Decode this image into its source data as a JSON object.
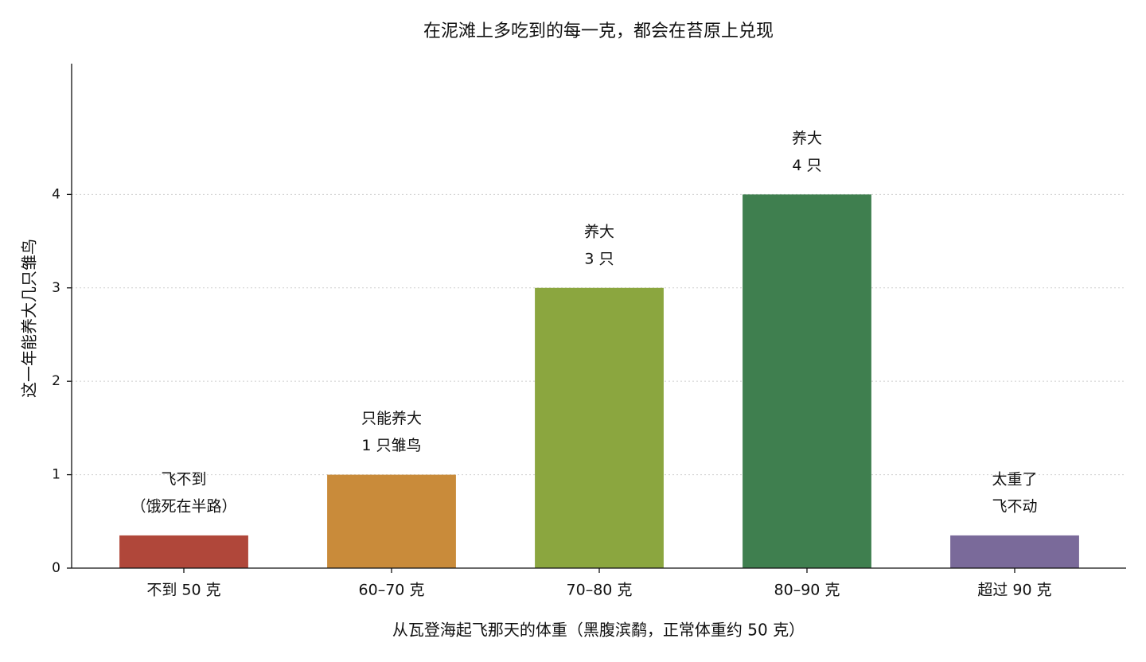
{
  "chart_data": {
    "type": "bar",
    "title": "在泥滩上多吃到的每一克，都会在苔原上兑现",
    "xlabel": "从瓦登海起飞那天的体重（黑腹滨鹬，正常体重约 50 克）",
    "ylabel": "这一年能养大几只雏鸟",
    "categories": [
      "不到 50 克",
      "60–70 克",
      "70–80 克",
      "80–90 克",
      "超过 90 克"
    ],
    "values": [
      0.35,
      1,
      3,
      4,
      0.35
    ],
    "colors": [
      "#b0473a",
      "#c98b3a",
      "#8ba63f",
      "#3f7f4f",
      "#7a6a9a"
    ],
    "annotations": [
      [
        "飞不到",
        "（饿死在半路）"
      ],
      [
        "只能养大",
        "1 只雏鸟"
      ],
      [
        "养大",
        "3 只"
      ],
      [
        "养大",
        "4 只"
      ],
      [
        "太重了",
        "飞不动"
      ]
    ],
    "ylim": [
      0,
      5.4
    ],
    "yticks": [
      0,
      1,
      2,
      3,
      4
    ],
    "grid": true
  }
}
